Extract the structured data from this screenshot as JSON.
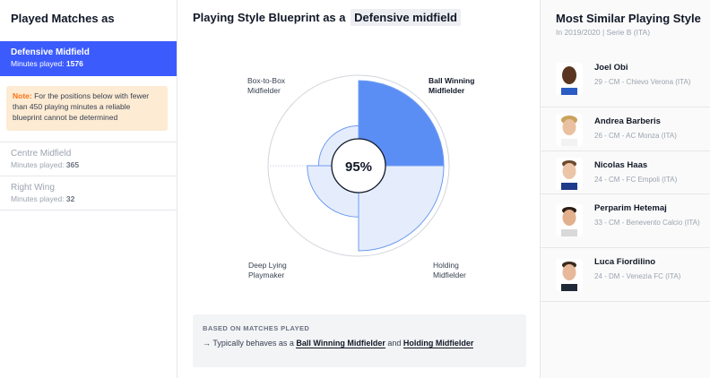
{
  "left": {
    "title": "Played Matches as",
    "positions": [
      {
        "name": "Defensive Midfield",
        "minutes_label": "Minutes played:",
        "minutes": "1576"
      },
      {
        "name": "Centre Midfield",
        "minutes_label": "Minutes played:",
        "minutes": "365"
      },
      {
        "name": "Right Wing",
        "minutes_label": "Minutes played:",
        "minutes": "32"
      }
    ],
    "note": {
      "label": "Note:",
      "text": "For the positions below with fewer than 450 playing minutes a reliable blueprint cannot be determined"
    }
  },
  "middle": {
    "title": "Playing Style Blueprint as a",
    "position_highlight": "Defensive midfield",
    "center_value": "95%",
    "roles": [
      {
        "label_line1": "Box-to-Box",
        "label_line2": "Midfielder",
        "value": 0.46,
        "highlighted": false
      },
      {
        "label_line1": "Ball Winning",
        "label_line2": "Midfielder",
        "value": 0.98,
        "highlighted": true
      },
      {
        "label_line1": "Holding",
        "label_line2": "Midfielder",
        "value": 0.98,
        "highlighted": false
      },
      {
        "label_line1": "Deep Lying",
        "label_line2": "Playmaker",
        "value": 0.59,
        "highlighted": false
      }
    ],
    "basis": {
      "title": "BASED ON MATCHES PLAYED",
      "arrow": "→",
      "prefix": "Typically behaves as a",
      "role1": "Ball Winning Midfielder",
      "conj": "and",
      "role2": "Holding Midfielder"
    }
  },
  "right": {
    "title": "Most Similar Playing Style",
    "subtitle": "In 2019/2020 | Serie B (ITA)",
    "players": [
      {
        "name": "Joel Obi",
        "details": "29 - CM - Chievo Verona (ITA)"
      },
      {
        "name": "Andrea Barberis",
        "details": "26 - CM - AC Monza (ITA)"
      },
      {
        "name": "Nicolas Haas",
        "details": "24 - CM - FC Empoli (ITA)"
      },
      {
        "name": "Perparim Hetemaj",
        "details": "33 - CM - Benevento Calcio (ITA)"
      },
      {
        "name": "Luca Fiordilino",
        "details": "24 - DM - Venezia FC (ITA)"
      }
    ]
  },
  "colors": {
    "accent": "#3b5bfd",
    "segment_strong": "#5b8ef5",
    "segment_light": "#e5edfc",
    "segment_stroke": "#6f9cf0",
    "note_bg": "#fdebd3",
    "note_label": "#f97316"
  }
}
